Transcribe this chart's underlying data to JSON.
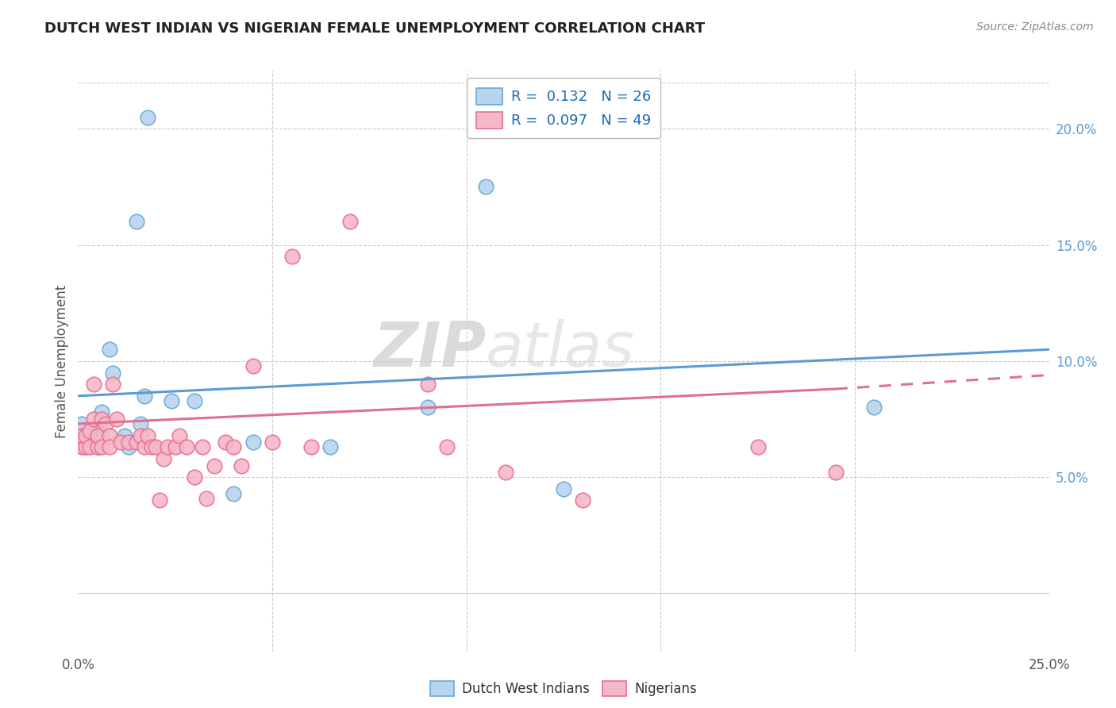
{
  "title": "DUTCH WEST INDIAN VS NIGERIAN FEMALE UNEMPLOYMENT CORRELATION CHART",
  "source": "Source: ZipAtlas.com",
  "ylabel": "Female Unemployment",
  "xlim": [
    0.0,
    0.25
  ],
  "ylim": [
    -0.025,
    0.225
  ],
  "xticks": [
    0.0,
    0.05,
    0.1,
    0.15,
    0.2,
    0.25
  ],
  "xticklabels": [
    "0.0%",
    "",
    "",
    "",
    "",
    "25.0%"
  ],
  "yticks": [
    0.05,
    0.1,
    0.15,
    0.2
  ],
  "yticklabels": [
    "5.0%",
    "10.0%",
    "15.0%",
    "20.0%"
  ],
  "legend1_label": "Dutch West Indians",
  "legend2_label": "Nigerians",
  "r1": 0.132,
  "n1": 26,
  "r2": 0.097,
  "n2": 49,
  "color_blue": "#b8d4ee",
  "color_pink": "#f4b8c8",
  "edge_blue": "#6aaad4",
  "edge_pink": "#e87090",
  "line_blue": "#5b9bd5",
  "line_pink": "#e07090",
  "watermark_zip": "ZIP",
  "watermark_atlas": "atlas",
  "blue_x": [
    0.018,
    0.001,
    0.002,
    0.002,
    0.003,
    0.004,
    0.005,
    0.005,
    0.006,
    0.006,
    0.008,
    0.009,
    0.012,
    0.013,
    0.015,
    0.016,
    0.017,
    0.024,
    0.03,
    0.04,
    0.045,
    0.065,
    0.09,
    0.105,
    0.125,
    0.205
  ],
  "blue_y": [
    0.205,
    0.073,
    0.068,
    0.063,
    0.065,
    0.068,
    0.071,
    0.063,
    0.078,
    0.068,
    0.105,
    0.095,
    0.068,
    0.063,
    0.16,
    0.073,
    0.085,
    0.083,
    0.083,
    0.043,
    0.065,
    0.063,
    0.08,
    0.175,
    0.045,
    0.08
  ],
  "pink_x": [
    0.001,
    0.001,
    0.002,
    0.002,
    0.003,
    0.003,
    0.004,
    0.004,
    0.005,
    0.005,
    0.006,
    0.006,
    0.007,
    0.008,
    0.008,
    0.009,
    0.01,
    0.011,
    0.013,
    0.015,
    0.016,
    0.017,
    0.018,
    0.019,
    0.02,
    0.021,
    0.022,
    0.023,
    0.025,
    0.026,
    0.028,
    0.03,
    0.032,
    0.033,
    0.035,
    0.038,
    0.04,
    0.042,
    0.045,
    0.05,
    0.055,
    0.06,
    0.07,
    0.09,
    0.095,
    0.11,
    0.13,
    0.175,
    0.195
  ],
  "pink_y": [
    0.063,
    0.068,
    0.063,
    0.068,
    0.063,
    0.07,
    0.075,
    0.09,
    0.063,
    0.068,
    0.075,
    0.063,
    0.073,
    0.068,
    0.063,
    0.09,
    0.075,
    0.065,
    0.065,
    0.065,
    0.068,
    0.063,
    0.068,
    0.063,
    0.063,
    0.04,
    0.058,
    0.063,
    0.063,
    0.068,
    0.063,
    0.05,
    0.063,
    0.041,
    0.055,
    0.065,
    0.063,
    0.055,
    0.098,
    0.065,
    0.145,
    0.063,
    0.16,
    0.09,
    0.063,
    0.052,
    0.04,
    0.063,
    0.052
  ],
  "blue_line_x0": 0.0,
  "blue_line_x1": 0.25,
  "blue_line_y0": 0.085,
  "blue_line_y1": 0.105,
  "pink_line_x0": 0.0,
  "pink_line_x1": 0.195,
  "pink_line_x1dash": 0.25,
  "pink_line_y0": 0.073,
  "pink_line_y1": 0.088,
  "pink_line_y1dash": 0.094
}
